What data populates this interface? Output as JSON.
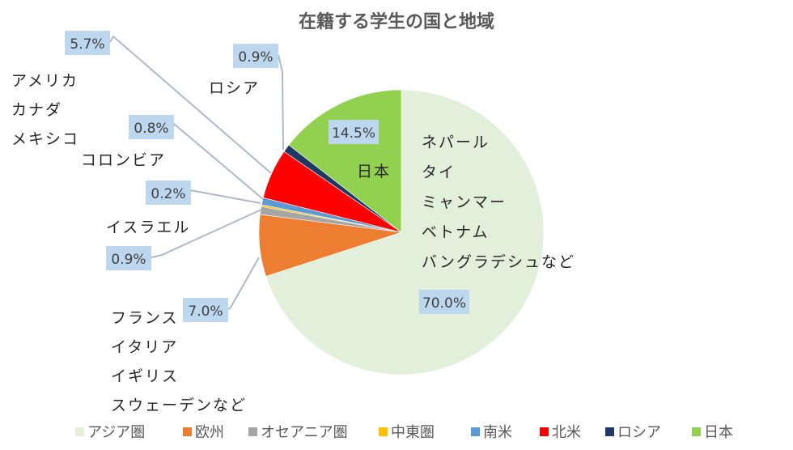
{
  "chart_data": {
    "type": "pie",
    "title": "在籍する学生の国と地域",
    "slices": [
      {
        "name": "アジア圏",
        "value": 70.0,
        "label": "70.0%",
        "color": "#e2efda",
        "annotation": [
          "ネパール",
          "タイ",
          "ミャンマー",
          "ベトナム",
          "バングラデシュなど"
        ]
      },
      {
        "name": "欧州",
        "value": 7.0,
        "label": "7.0%",
        "color": "#ed7d31",
        "annotation": [
          "フランス",
          "イタリア",
          "イギリス",
          "スウェーデンなど"
        ]
      },
      {
        "name": "オセアニア圏",
        "value": 0.9,
        "label": "0.9%",
        "color": "#a5a5a5",
        "annotation": []
      },
      {
        "name": "中東圏",
        "value": 0.2,
        "label": "0.2%",
        "color": "#ffc000",
        "annotation": [
          "イスラエル"
        ]
      },
      {
        "name": "南米",
        "value": 0.8,
        "label": "0.8%",
        "color": "#5b9bd5",
        "annotation": [
          "コロンビア"
        ]
      },
      {
        "name": "北米",
        "value": 5.7,
        "label": "5.7%",
        "color": "#ff0000",
        "annotation": [
          "アメリカ",
          "カナダ",
          "メキシコ"
        ]
      },
      {
        "name": "ロシア",
        "value": 0.9,
        "label": "0.9%",
        "color": "#203864",
        "annotation": [
          "ロシア"
        ]
      },
      {
        "name": "日本",
        "value": 14.5,
        "label": "14.5%",
        "color": "#92d050",
        "annotation": [
          "日本"
        ]
      }
    ],
    "legend_position": "bottom",
    "start_angle": "top, clockwise"
  }
}
